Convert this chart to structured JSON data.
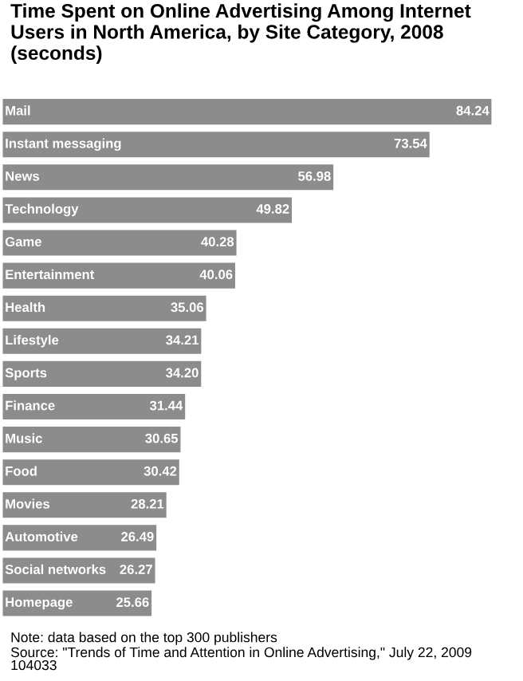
{
  "chart_data": {
    "type": "bar",
    "orientation": "horizontal",
    "title": "Time Spent on Online Advertising Among Internet Users in North America, by Site Category, 2008 (seconds)",
    "categories": [
      "Mail",
      "Instant messaging",
      "News",
      "Technology",
      "Game",
      "Entertainment",
      "Health",
      "Lifestyle",
      "Sports",
      "Finance",
      "Music",
      "Food",
      "Movies",
      "Automotive",
      "Social networks",
      "Homepage"
    ],
    "values": [
      84.24,
      73.54,
      56.98,
      49.82,
      40.28,
      40.06,
      35.06,
      34.21,
      34.2,
      31.44,
      30.65,
      30.42,
      28.21,
      26.49,
      26.27,
      25.66
    ],
    "value_labels": [
      "84.24",
      "73.54",
      "56.98",
      "49.82",
      "40.28",
      "40.06",
      "35.06",
      "34.21",
      "34.20",
      "31.44",
      "30.65",
      "30.42",
      "28.21",
      "26.49",
      "26.27",
      "25.66"
    ],
    "color": "#8c8c8c",
    "grid": false,
    "legend": false,
    "tick_labels": false,
    "annotations": [
      "Note: data based on the top 300 publishers",
      "Source: \"Trends of Time and Attention in Online Advertising,\" July 22, 2009",
      "104033"
    ]
  }
}
